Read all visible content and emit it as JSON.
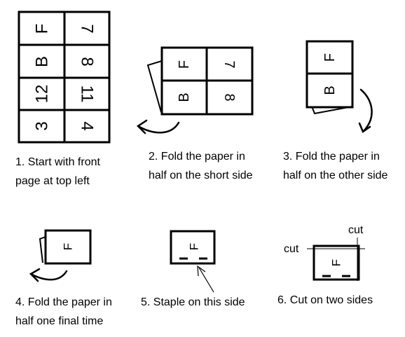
{
  "steps": [
    {
      "line1": "1. Start with front",
      "line2": "page at top left"
    },
    {
      "line1": "2. Fold the paper in",
      "line2": "half on the short side"
    },
    {
      "line1": "3. Fold the paper in",
      "line2": "half on the other side"
    },
    {
      "line1": "4. Fold the paper in",
      "line2": "half one final time"
    },
    {
      "line1": "5. Staple on this side"
    },
    {
      "line1": "6. Cut on two sides"
    }
  ],
  "sheet_cells": [
    {
      "left": "F",
      "right": "7"
    },
    {
      "left": "B",
      "right": "8"
    },
    {
      "left": "12",
      "right": "11"
    },
    {
      "left": "3",
      "right": "4"
    }
  ],
  "cut_labels": {
    "top": "cut",
    "left": "cut"
  }
}
